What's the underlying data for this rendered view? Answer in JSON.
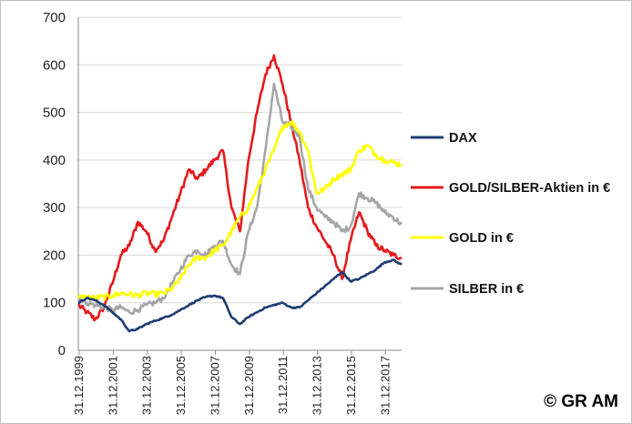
{
  "chart_data": {
    "type": "line",
    "title": "",
    "xlabel": "",
    "ylabel": "",
    "ylim": [
      0,
      700
    ],
    "yticks": [
      0,
      100,
      200,
      300,
      400,
      500,
      600,
      700
    ],
    "x_tick_labels": [
      "31.12.1999",
      "31.12.2001",
      "31.12.2003",
      "31.12.2005",
      "31.12.2007",
      "31.12.2009",
      "31.12.2011",
      "31.12.2013",
      "31.12.2015",
      "31.12.2017"
    ],
    "x": [
      1999.0,
      1999.5,
      2000.0,
      2000.5,
      2001.0,
      2001.5,
      2002.0,
      2002.5,
      2003.0,
      2003.5,
      2004.0,
      2004.5,
      2005.0,
      2005.5,
      2006.0,
      2006.5,
      2007.0,
      2007.5,
      2008.0,
      2008.5,
      2009.0,
      2009.5,
      2010.0,
      2010.5,
      2011.0,
      2011.5,
      2012.0,
      2012.5,
      2013.0,
      2013.5,
      2014.0,
      2014.5,
      2015.0,
      2015.5,
      2016.0,
      2016.5,
      2017.0,
      2017.5,
      2018.0
    ],
    "grid": true,
    "legend_position": "right",
    "series": [
      {
        "name": "DAX",
        "color": "#1f3d73",
        "values": [
          100,
          110,
          105,
          95,
          80,
          65,
          40,
          45,
          55,
          62,
          68,
          75,
          85,
          95,
          105,
          112,
          115,
          110,
          70,
          55,
          70,
          80,
          90,
          95,
          100,
          90,
          90,
          105,
          120,
          135,
          150,
          165,
          145,
          150,
          160,
          170,
          185,
          190,
          180
        ]
      },
      {
        "name": "GOLD/SILBER-Aktien in €",
        "color": "#e41a1c",
        "values": [
          95,
          80,
          65,
          90,
          140,
          200,
          220,
          270,
          250,
          210,
          230,
          280,
          330,
          380,
          360,
          380,
          400,
          420,
          300,
          250,
          400,
          500,
          580,
          620,
          560,
          480,
          400,
          300,
          260,
          230,
          200,
          150,
          230,
          290,
          250,
          220,
          210,
          200,
          195
        ]
      },
      {
        "name": "GOLD in €",
        "color": "#ffff00",
        "values": [
          110,
          112,
          110,
          112,
          115,
          120,
          118,
          115,
          120,
          118,
          120,
          130,
          150,
          180,
          195,
          195,
          210,
          220,
          250,
          280,
          300,
          340,
          380,
          420,
          470,
          480,
          460,
          420,
          330,
          340,
          360,
          370,
          380,
          420,
          430,
          410,
          400,
          395,
          390
        ]
      },
      {
        "name": "SILBER in €",
        "color": "#a6a6a6",
        "values": [
          110,
          100,
          95,
          90,
          85,
          90,
          80,
          85,
          95,
          100,
          110,
          140,
          170,
          200,
          210,
          200,
          220,
          230,
          180,
          160,
          250,
          300,
          420,
          560,
          480,
          470,
          450,
          340,
          300,
          280,
          270,
          250,
          260,
          330,
          320,
          310,
          290,
          280,
          265
        ]
      }
    ]
  },
  "copyright": "© GR AM"
}
